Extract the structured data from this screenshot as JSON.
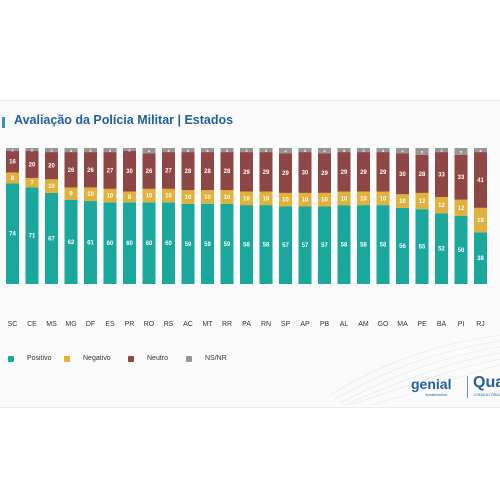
{
  "title": "Avaliação da Polícia Militar | Estados",
  "colors": {
    "positivo": "#1aa79c",
    "negativo": "#e1b23b",
    "neutro": "#8e4744",
    "nsnr": "#959595",
    "title": "#1f5fa0"
  },
  "legend": [
    {
      "key": "positivo",
      "label": "Positivo"
    },
    {
      "key": "negativo",
      "label": "Negativo"
    },
    {
      "key": "neutro",
      "label": "Neutro"
    },
    {
      "key": "nsnr",
      "label": "NS/NR"
    }
  ],
  "logos": {
    "genial": "genial",
    "genial_sub": "investimentos",
    "quaest": "Quaest",
    "quaest_sub": "CONSULTORIA & PESQUISA"
  },
  "chart_data": {
    "type": "bar",
    "stacked": true,
    "percent_total": 100,
    "categories": [
      "SC",
      "CE",
      "MS",
      "MG",
      "DF",
      "ES",
      "PR",
      "RO",
      "RS",
      "AC",
      "MT",
      "RR",
      "PA",
      "RN",
      "SP",
      "AP",
      "PB",
      "AL",
      "AM",
      "GO",
      "MA",
      "PE",
      "BA",
      "PI",
      "RJ"
    ],
    "series": [
      {
        "name": "Positivo",
        "key": "positivo",
        "values": [
          74,
          71,
          67,
          62,
          61,
          60,
          60,
          60,
          60,
          59,
          59,
          59,
          58,
          58,
          57,
          57,
          57,
          58,
          58,
          58,
          56,
          55,
          52,
          50,
          38
        ]
      },
      {
        "name": "Negativo",
        "key": "negativo",
        "values": [
          8,
          7,
          10,
          9,
          10,
          10,
          8,
          10,
          10,
          10,
          10,
          10,
          10,
          10,
          10,
          10,
          10,
          10,
          10,
          10,
          10,
          12,
          12,
          12,
          18
        ]
      },
      {
        "name": "Neutro",
        "key": "neutro",
        "values": [
          16,
          20,
          20,
          26,
          26,
          27,
          30,
          26,
          27,
          28,
          28,
          28,
          29,
          29,
          29,
          30,
          29,
          29,
          29,
          29,
          30,
          28,
          33,
          33,
          41
        ]
      },
      {
        "name": "NS/NR",
        "key": "nsnr",
        "values": [
          2,
          2,
          3,
          3,
          3,
          3,
          2,
          4,
          3,
          3,
          3,
          3,
          3,
          3,
          4,
          3,
          4,
          3,
          3,
          3,
          4,
          5,
          3,
          5,
          3
        ]
      }
    ],
    "ylim": [
      0,
      100
    ],
    "show_axis": false,
    "legend_position": "bottom-left"
  }
}
